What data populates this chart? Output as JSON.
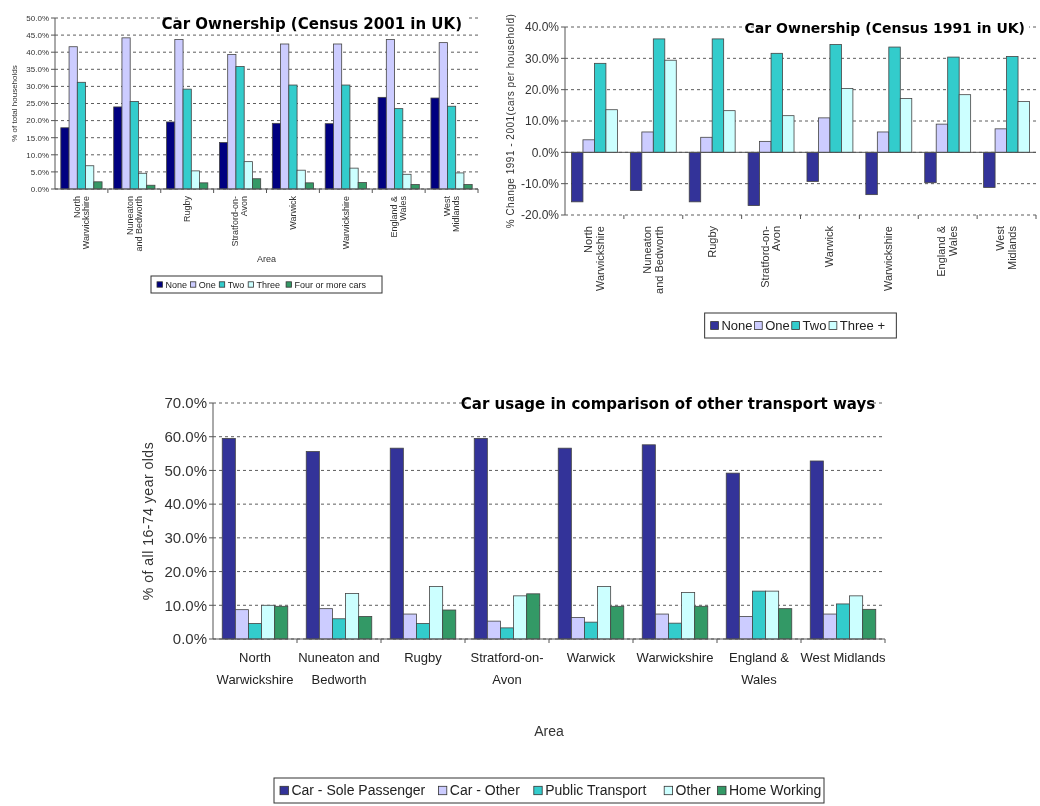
{
  "chart_data": [
    {
      "type": "bar",
      "title": "Car Ownership (Census 2001 in UK)",
      "xlabel": "Area",
      "ylabel": "% of total households",
      "categories": [
        "North\nWarwickshire",
        "Nuneaton\nand Bedworth",
        "Rugby",
        "Stratford-on-\nAvon",
        "Warwick",
        "Warwickshire",
        "England &\nWales",
        "West\nMidlands"
      ],
      "series": [
        {
          "name": "None",
          "color": "#000080",
          "values": [
            17.9,
            24.0,
            19.6,
            13.6,
            19.2,
            19.1,
            26.8,
            26.6
          ]
        },
        {
          "name": "One",
          "color": "#ccccff",
          "values": [
            41.6,
            44.2,
            43.7,
            39.3,
            42.4,
            42.4,
            43.7,
            42.8
          ]
        },
        {
          "name": "Two",
          "color": "#33cccc",
          "values": [
            31.2,
            25.6,
            29.2,
            35.8,
            30.4,
            30.4,
            23.5,
            24.2
          ]
        },
        {
          "name": "Three",
          "color": "#ccffff",
          "values": [
            6.8,
            4.6,
            5.3,
            8.0,
            5.5,
            6.1,
            4.3,
            4.7
          ]
        },
        {
          "name": "Four or more cars",
          "color": "#339966",
          "values": [
            2.1,
            1.1,
            1.8,
            3.0,
            1.8,
            1.9,
            1.3,
            1.3
          ]
        }
      ],
      "ylim": [
        0,
        50
      ],
      "yticks": [
        {
          "value": 0,
          "label": "0.0%"
        },
        {
          "value": 5,
          "label": "5.0%"
        },
        {
          "value": 10,
          "label": "10.0%"
        },
        {
          "value": 15,
          "label": "15.0%"
        },
        {
          "value": 20,
          "label": "20.0%"
        },
        {
          "value": 25,
          "label": "25.0%"
        },
        {
          "value": 30,
          "label": "30.0%"
        },
        {
          "value": 35,
          "label": "35.0%"
        },
        {
          "value": 40,
          "label": "40.0%"
        },
        {
          "value": 45,
          "label": "45.0%"
        },
        {
          "value": 50,
          "label": "50.0%"
        }
      ],
      "grid": "y",
      "legend": "bottom"
    },
    {
      "type": "bar",
      "title": "Car Ownership (Census 1991 in UK)",
      "ylabel": "% Change  1991 - 2001(cars per household)",
      "categories": [
        "North\nWarwickshire",
        "Nuneaton\nand Bedworth",
        "Rugby",
        "Stratford-on-\nAvon",
        "Warwick",
        "Warwickshire",
        "England &\nWales",
        "West\nMidlands"
      ],
      "series": [
        {
          "name": "None",
          "color": "#333399",
          "values": [
            -15.8,
            -12.2,
            -15.8,
            -17.0,
            -9.3,
            -13.5,
            -9.7,
            -11.2
          ]
        },
        {
          "name": "One",
          "color": "#ccccff",
          "values": [
            4.0,
            6.5,
            4.8,
            3.5,
            11.0,
            6.5,
            9.0,
            7.5
          ]
        },
        {
          "name": "Two",
          "color": "#33cccc",
          "values": [
            28.4,
            36.2,
            36.2,
            31.6,
            34.4,
            33.6,
            30.4,
            30.6
          ]
        },
        {
          "name": "Three +",
          "color": "#ccffff",
          "values": [
            13.6,
            29.4,
            13.3,
            11.7,
            20.4,
            17.2,
            18.4,
            16.2
          ]
        }
      ],
      "ylim": [
        -20,
        40
      ],
      "yticks": [
        {
          "value": -20,
          "label": "-20.0%"
        },
        {
          "value": -10,
          "label": "-10.0%"
        },
        {
          "value": 0,
          "label": "0.0%"
        },
        {
          "value": 10,
          "label": "10.0%"
        },
        {
          "value": 20,
          "label": "20.0%"
        },
        {
          "value": 30,
          "label": "30.0%"
        },
        {
          "value": 40,
          "label": "40.0%"
        }
      ],
      "grid": "y",
      "legend": "bottom"
    },
    {
      "type": "bar",
      "title": "Car usage in comparison of other transport ways",
      "xlabel": "Area",
      "ylabel": "% of all  16-74  year olds",
      "categories": [
        "North\nWarwickshire",
        "Nuneaton and\nBedworth",
        "Rugby",
        "Stratford-on-\nAvon",
        "Warwick",
        "Warwickshire",
        "England &\nWales",
        "West Midlands"
      ],
      "series": [
        {
          "name": "Car - Sole Passenger",
          "color": "#333399",
          "values": [
            59.5,
            55.6,
            56.6,
            59.5,
            56.6,
            57.6,
            49.2,
            52.8
          ]
        },
        {
          "name": "Car - Other",
          "color": "#ccccff",
          "values": [
            8.7,
            9.0,
            7.4,
            5.3,
            6.4,
            7.4,
            6.7,
            7.4
          ]
        },
        {
          "name": "Public Transport",
          "color": "#33cccc",
          "values": [
            4.6,
            6.0,
            4.6,
            3.3,
            5.0,
            4.7,
            14.2,
            10.4
          ]
        },
        {
          "name": "Other",
          "color": "#ccffff",
          "values": [
            10.0,
            13.5,
            15.6,
            12.8,
            15.6,
            13.8,
            14.2,
            12.8
          ]
        },
        {
          "name": "Home Working",
          "color": "#339966",
          "values": [
            9.7,
            6.7,
            8.6,
            13.4,
            9.7,
            9.7,
            9.0,
            8.8
          ]
        }
      ],
      "ylim": [
        0,
        70
      ],
      "yticks": [
        {
          "value": 0,
          "label": "0.0%"
        },
        {
          "value": 10,
          "label": "10.0%"
        },
        {
          "value": 20,
          "label": "20.0%"
        },
        {
          "value": 30,
          "label": "30.0%"
        },
        {
          "value": 40,
          "label": "40.0%"
        },
        {
          "value": 50,
          "label": "50.0%"
        },
        {
          "value": 60,
          "label": "60.0%"
        },
        {
          "value": 70,
          "label": "70.0%"
        }
      ],
      "grid": "y",
      "legend": "bottom"
    }
  ]
}
